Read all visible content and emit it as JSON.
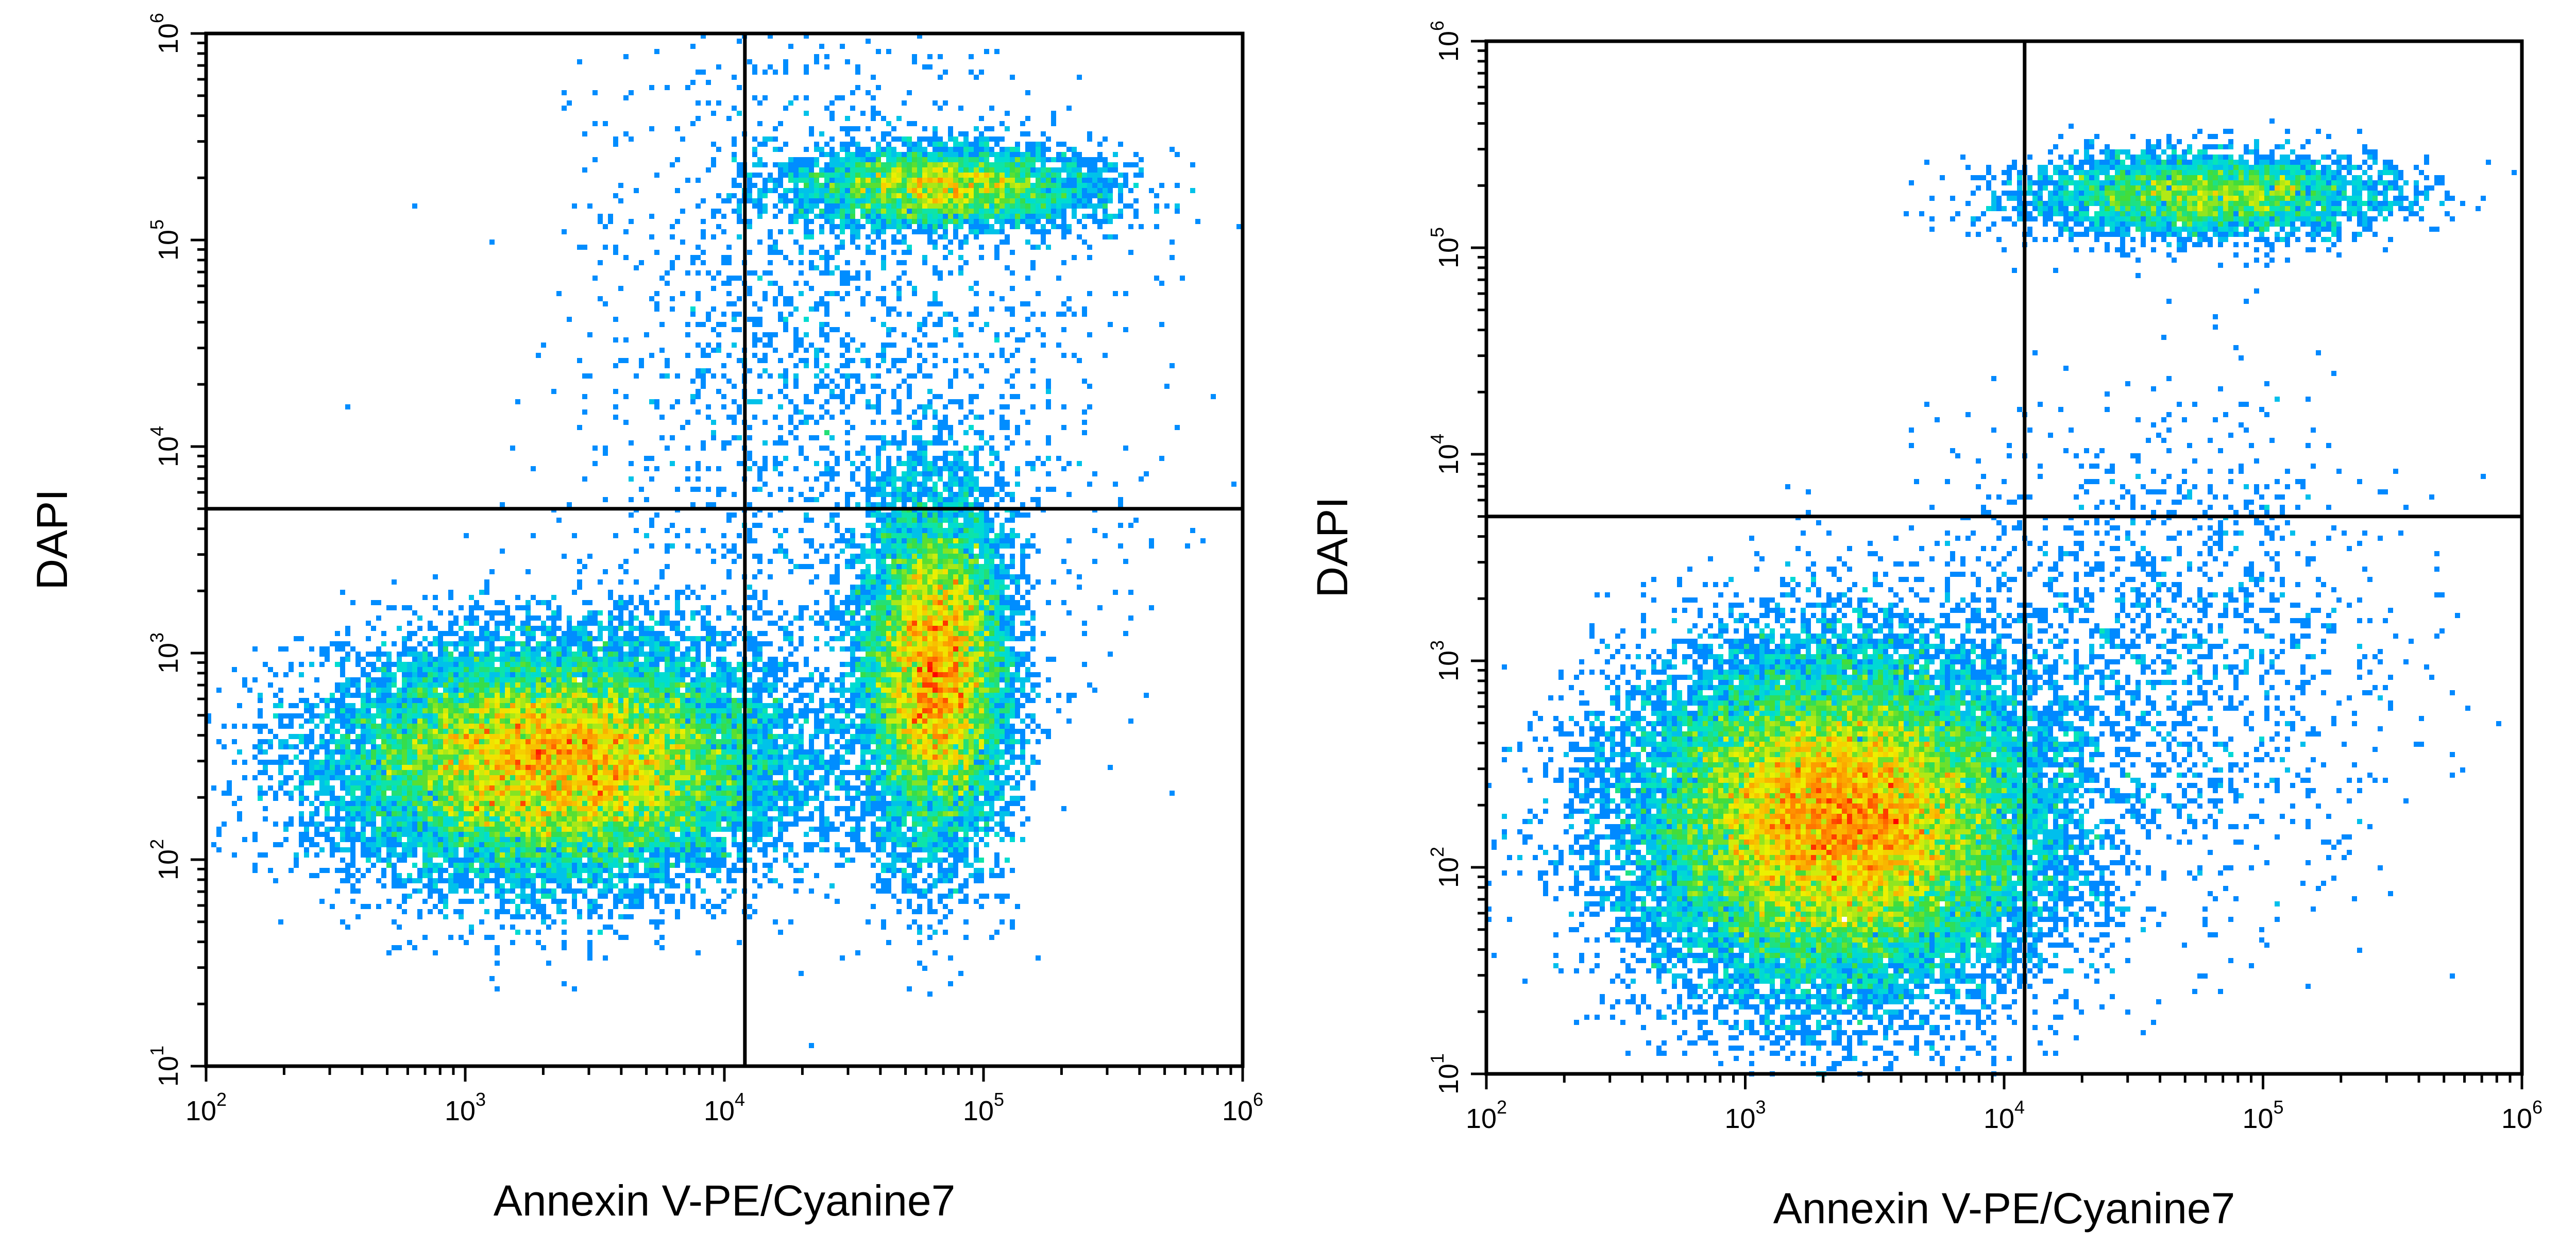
{
  "chart_data": [
    {
      "type": "scatter",
      "title": "",
      "xlabel": "Annexin V-PE/Cyanine7",
      "ylabel": "DAPI",
      "xscale": "log",
      "yscale": "log",
      "xlim": [
        100,
        1000000
      ],
      "ylim": [
        10,
        1000000
      ],
      "x_ticks": [
        {
          "base": "10",
          "exp": "2"
        },
        {
          "base": "10",
          "exp": "3"
        },
        {
          "base": "10",
          "exp": "4"
        },
        {
          "base": "10",
          "exp": "5"
        },
        {
          "base": "10",
          "exp": "6"
        }
      ],
      "y_ticks": [
        {
          "base": "10",
          "exp": "1"
        },
        {
          "base": "10",
          "exp": "2"
        },
        {
          "base": "10",
          "exp": "3"
        },
        {
          "base": "10",
          "exp": "4"
        },
        {
          "base": "10",
          "exp": "5"
        },
        {
          "base": "10",
          "exp": "6"
        }
      ],
      "quadrant_gate": {
        "x": 12000,
        "y": 5000
      },
      "grid": false,
      "colormap": "density (blue → cyan → green → yellow → red)",
      "populations": [
        {
          "center": [
            2300,
            300
          ],
          "spread_decades": [
            0.42,
            0.28
          ],
          "relative_density": 0.55
        },
        {
          "center": [
            65000,
            800
          ],
          "spread_decades": [
            0.14,
            0.42
          ],
          "relative_density": 0.3
        },
        {
          "center": [
            70000,
            180000
          ],
          "spread_decades": [
            0.3,
            0.1
          ],
          "relative_density": 0.1
        },
        {
          "center": [
            30000,
            20000
          ],
          "spread_decades": [
            0.5,
            0.9
          ],
          "relative_density": 0.05
        }
      ]
    },
    {
      "type": "scatter",
      "title": "",
      "xlabel": "Annexin V-PE/Cyanine7",
      "ylabel": "DAPI",
      "xscale": "log",
      "yscale": "log",
      "xlim": [
        100,
        1000000
      ],
      "ylim": [
        10,
        1000000
      ],
      "x_ticks": [
        {
          "base": "10",
          "exp": "2"
        },
        {
          "base": "10",
          "exp": "3"
        },
        {
          "base": "10",
          "exp": "4"
        },
        {
          "base": "10",
          "exp": "5"
        },
        {
          "base": "10",
          "exp": "6"
        }
      ],
      "y_ticks": [
        {
          "base": "10",
          "exp": "1"
        },
        {
          "base": "10",
          "exp": "2"
        },
        {
          "base": "10",
          "exp": "3"
        },
        {
          "base": "10",
          "exp": "4"
        },
        {
          "base": "10",
          "exp": "5"
        },
        {
          "base": "10",
          "exp": "6"
        }
      ],
      "quadrant_gate": {
        "x": 12000,
        "y": 5000
      },
      "grid": false,
      "colormap": "density (blue → cyan → green → yellow → red)",
      "populations": [
        {
          "center": [
            2300,
            170
          ],
          "spread_decades": [
            0.38,
            0.4
          ],
          "relative_density": 0.86
        },
        {
          "center": [
            60000,
            180000
          ],
          "spread_decades": [
            0.35,
            0.1
          ],
          "relative_density": 0.1
        },
        {
          "center": [
            40000,
            1000
          ],
          "spread_decades": [
            0.45,
            0.6
          ],
          "relative_density": 0.04
        }
      ]
    }
  ]
}
